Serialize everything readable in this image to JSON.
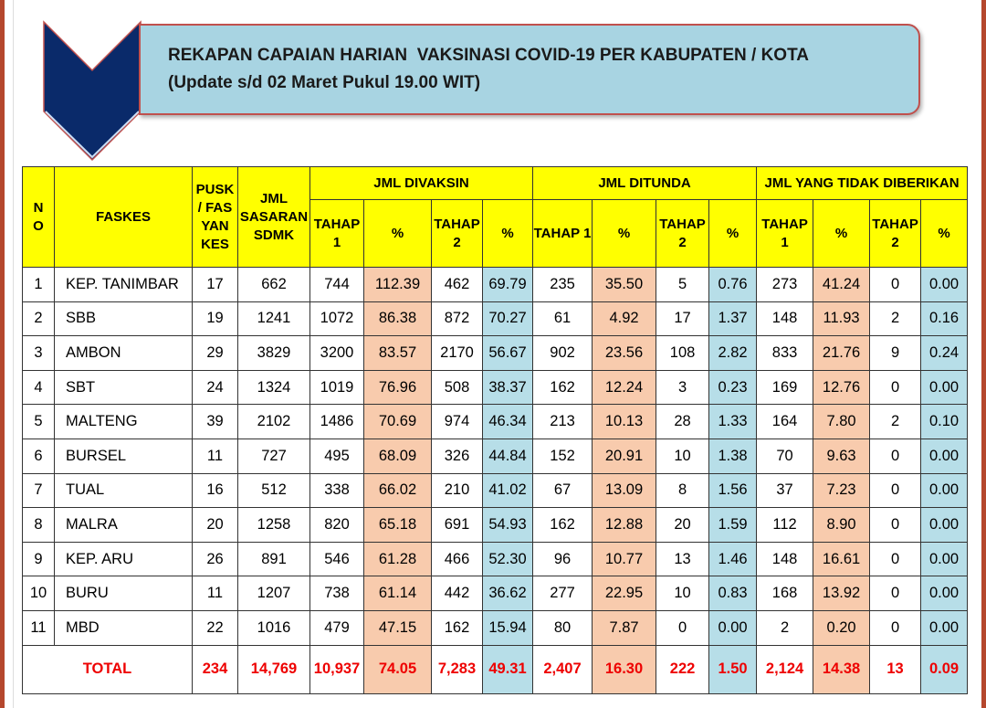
{
  "title": {
    "line1": "REKAPAN CAPAIAN HARIAN  VAKSINASI COVID-19 PER KABUPATEN / KOTA",
    "line2": "(Update s/d 02 Maret Pukul 19.00 WIT)"
  },
  "colors": {
    "header": "#ffff00",
    "pct_orange": "#f8cbad",
    "pct_blue": "#b7dee8",
    "total": "#e00000"
  },
  "headers": {
    "no": "N O",
    "faskes": "FASKES",
    "pusk": "PUSK / FAS YAN KES",
    "sasaran": "JML SASARAN SDMK",
    "divaksin": "JML DIVAKSIN",
    "ditunda": "JML DITUNDA",
    "tidak": "JML YANG TIDAK DIBERIKAN",
    "tahap1": "TAHAP 1",
    "tahap2": "TAHAP 2",
    "pct": "%"
  },
  "rows": [
    [
      "1",
      "KEP. TANIMBAR",
      "17",
      "662",
      "744",
      "112.39",
      "462",
      "69.79",
      "235",
      "35.50",
      "5",
      "0.76",
      "273",
      "41.24",
      "0",
      "0.00"
    ],
    [
      "2",
      "SBB",
      "19",
      "1241",
      "1072",
      "86.38",
      "872",
      "70.27",
      "61",
      "4.92",
      "17",
      "1.37",
      "148",
      "11.93",
      "2",
      "0.16"
    ],
    [
      "3",
      "AMBON",
      "29",
      "3829",
      "3200",
      "83.57",
      "2170",
      "56.67",
      "902",
      "23.56",
      "108",
      "2.82",
      "833",
      "21.76",
      "9",
      "0.24"
    ],
    [
      "4",
      "SBT",
      "24",
      "1324",
      "1019",
      "76.96",
      "508",
      "38.37",
      "162",
      "12.24",
      "3",
      "0.23",
      "169",
      "12.76",
      "0",
      "0.00"
    ],
    [
      "5",
      "MALTENG",
      "39",
      "2102",
      "1486",
      "70.69",
      "974",
      "46.34",
      "213",
      "10.13",
      "28",
      "1.33",
      "164",
      "7.80",
      "2",
      "0.10"
    ],
    [
      "6",
      "BURSEL",
      "11",
      "727",
      "495",
      "68.09",
      "326",
      "44.84",
      "152",
      "20.91",
      "10",
      "1.38",
      "70",
      "9.63",
      "0",
      "0.00"
    ],
    [
      "7",
      "TUAL",
      "16",
      "512",
      "338",
      "66.02",
      "210",
      "41.02",
      "67",
      "13.09",
      "8",
      "1.56",
      "37",
      "7.23",
      "0",
      "0.00"
    ],
    [
      "8",
      "MALRA",
      "20",
      "1258",
      "820",
      "65.18",
      "691",
      "54.93",
      "162",
      "12.88",
      "20",
      "1.59",
      "112",
      "8.90",
      "0",
      "0.00"
    ],
    [
      "9",
      "KEP. ARU",
      "26",
      "891",
      "546",
      "61.28",
      "466",
      "52.30",
      "96",
      "10.77",
      "13",
      "1.46",
      "148",
      "16.61",
      "0",
      "0.00"
    ],
    [
      "10",
      "BURU",
      "11",
      "1207",
      "738",
      "61.14",
      "442",
      "36.62",
      "277",
      "22.95",
      "10",
      "0.83",
      "168",
      "13.92",
      "0",
      "0.00"
    ],
    [
      "11",
      "MBD",
      "22",
      "1016",
      "479",
      "47.15",
      "162",
      "15.94",
      "80",
      "7.87",
      "0",
      "0.00",
      "2",
      "0.20",
      "0",
      "0.00"
    ]
  ],
  "total": [
    "TOTAL",
    "234",
    "14,769",
    "10,937",
    "74.05",
    "7,283",
    "49.31",
    "2,407",
    "16.30",
    "222",
    "1.50",
    "2,124",
    "14.38",
    "13",
    "0.09"
  ]
}
